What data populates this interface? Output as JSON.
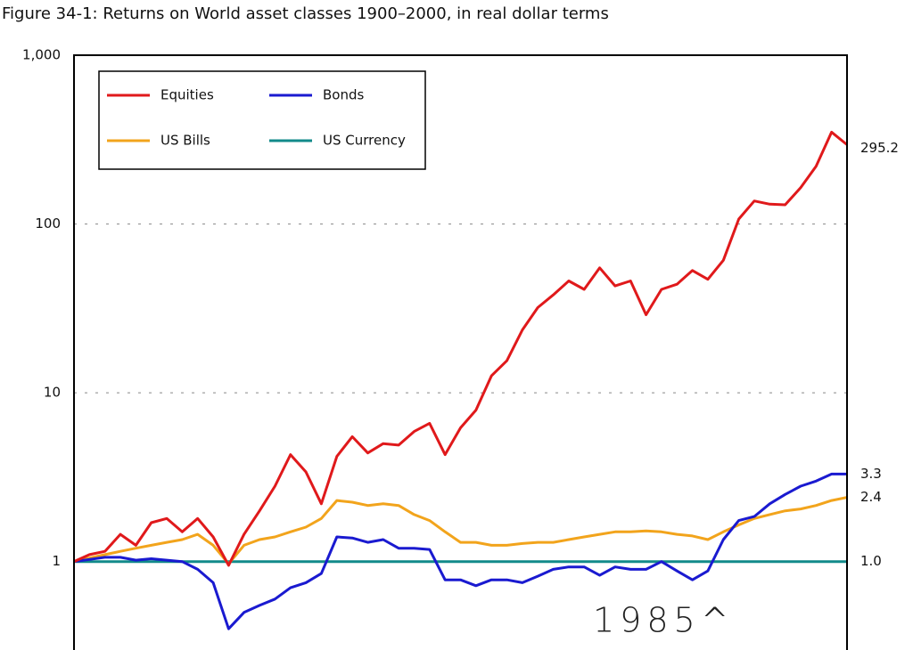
{
  "chart_data": {
    "type": "line",
    "title": "Figure 34-1: Returns on World asset classes 1900–2000, in real dollar terms",
    "annotation": "1985^",
    "log_scale": true,
    "grid": true,
    "legend": "upper left",
    "ylim": [
      0.33,
      1000
    ],
    "yticks": [
      1,
      10,
      100,
      {
        "value": 1000,
        "label": "1,000"
      }
    ],
    "xlim": [
      1900,
      2000
    ],
    "x": [
      1900,
      1902,
      1904,
      1906,
      1908,
      1910,
      1912,
      1914,
      1916,
      1918,
      1920,
      1922,
      1924,
      1926,
      1928,
      1930,
      1932,
      1934,
      1936,
      1938,
      1940,
      1942,
      1944,
      1946,
      1948,
      1950,
      1952,
      1954,
      1956,
      1958,
      1960,
      1962,
      1964,
      1966,
      1968,
      1970,
      1972,
      1974,
      1976,
      1978,
      1980,
      1982,
      1984,
      1986,
      1988,
      1990,
      1992,
      1994,
      1996,
      1998,
      2000
    ],
    "series": [
      {
        "name": "Equities",
        "color": "#e0191b",
        "values": [
          1.0,
          1.1,
          1.15,
          1.45,
          1.25,
          1.7,
          1.8,
          1.5,
          1.8,
          1.4,
          0.95,
          1.45,
          2.0,
          2.8,
          4.3,
          3.4,
          2.2,
          4.2,
          5.5,
          4.4,
          5.0,
          4.9,
          5.9,
          6.6,
          4.3,
          6.2,
          7.9,
          12.6,
          15.5,
          23.6,
          32,
          38,
          46,
          41,
          55,
          43,
          46,
          29,
          41,
          44,
          53,
          47,
          61,
          107,
          137,
          131,
          130,
          164,
          220,
          350,
          295.2
        ],
        "value_labels": [
          null,
          null,
          null,
          null,
          null,
          null,
          null,
          null,
          null,
          null,
          null,
          null,
          null,
          null,
          null,
          null,
          null,
          null,
          null,
          null,
          null,
          null,
          null,
          null,
          null,
          null,
          null,
          null,
          null,
          null,
          null,
          null,
          null,
          null,
          null,
          null,
          null,
          null,
          null,
          null,
          null,
          null,
          null,
          null,
          null,
          null,
          null,
          null,
          null,
          null,
          "295.2"
        ]
      },
      {
        "name": "Bonds",
        "color": "#1a1ad0",
        "values": [
          1.0,
          1.03,
          1.06,
          1.06,
          1.02,
          1.04,
          1.02,
          1.0,
          0.9,
          0.75,
          0.4,
          0.5,
          0.55,
          0.6,
          0.7,
          0.75,
          0.85,
          1.4,
          1.38,
          1.3,
          1.35,
          1.2,
          1.2,
          1.18,
          0.78,
          0.78,
          0.72,
          0.78,
          0.78,
          0.75,
          0.82,
          0.9,
          0.93,
          0.93,
          0.83,
          0.93,
          0.9,
          0.9,
          1.0,
          0.88,
          0.78,
          0.88,
          1.35,
          1.75,
          1.85,
          2.2,
          2.5,
          2.8,
          3.0,
          3.3,
          3.3
        ],
        "value_labels": [
          null,
          null,
          null,
          null,
          null,
          null,
          null,
          null,
          null,
          null,
          null,
          null,
          null,
          null,
          null,
          null,
          null,
          null,
          null,
          null,
          null,
          null,
          null,
          null,
          null,
          null,
          null,
          null,
          null,
          null,
          null,
          null,
          null,
          null,
          null,
          null,
          null,
          null,
          null,
          null,
          null,
          null,
          null,
          null,
          null,
          null,
          null,
          null,
          null,
          null,
          "3.3"
        ]
      },
      {
        "name": "US Bills",
        "color": "#f2a41c",
        "values": [
          1.0,
          1.05,
          1.1,
          1.15,
          1.2,
          1.25,
          1.3,
          1.35,
          1.45,
          1.25,
          0.97,
          1.25,
          1.35,
          1.4,
          1.5,
          1.6,
          1.8,
          2.3,
          2.25,
          2.15,
          2.2,
          2.15,
          1.9,
          1.75,
          1.5,
          1.3,
          1.3,
          1.25,
          1.25,
          1.28,
          1.3,
          1.3,
          1.35,
          1.4,
          1.45,
          1.5,
          1.5,
          1.52,
          1.5,
          1.45,
          1.42,
          1.35,
          1.5,
          1.65,
          1.8,
          1.9,
          2.0,
          2.05,
          2.15,
          2.3,
          2.4
        ],
        "value_labels": [
          null,
          null,
          null,
          null,
          null,
          null,
          null,
          null,
          null,
          null,
          null,
          null,
          null,
          null,
          null,
          null,
          null,
          null,
          null,
          null,
          null,
          null,
          null,
          null,
          null,
          null,
          null,
          null,
          null,
          null,
          null,
          null,
          null,
          null,
          null,
          null,
          null,
          null,
          null,
          null,
          null,
          null,
          null,
          null,
          null,
          null,
          null,
          null,
          null,
          null,
          "2.4"
        ]
      },
      {
        "name": "US Currency",
        "color": "#128a8a",
        "values": [
          1,
          1,
          1,
          1,
          1,
          1,
          1,
          1,
          1,
          1,
          1,
          1,
          1,
          1,
          1,
          1,
          1,
          1,
          1,
          1,
          1,
          1,
          1,
          1,
          1,
          1,
          1,
          1,
          1,
          1,
          1,
          1,
          1,
          1,
          1,
          1,
          1,
          1,
          1,
          1,
          1,
          1,
          1,
          1,
          1,
          1,
          1,
          1,
          1,
          1,
          1.0
        ],
        "value_labels": [
          null,
          null,
          null,
          null,
          null,
          null,
          null,
          null,
          null,
          null,
          null,
          null,
          null,
          null,
          null,
          null,
          null,
          null,
          null,
          null,
          null,
          null,
          null,
          null,
          null,
          null,
          null,
          null,
          null,
          null,
          null,
          null,
          null,
          null,
          null,
          null,
          null,
          null,
          null,
          null,
          null,
          null,
          null,
          null,
          null,
          null,
          null,
          null,
          null,
          null,
          "1.0"
        ]
      }
    ]
  }
}
